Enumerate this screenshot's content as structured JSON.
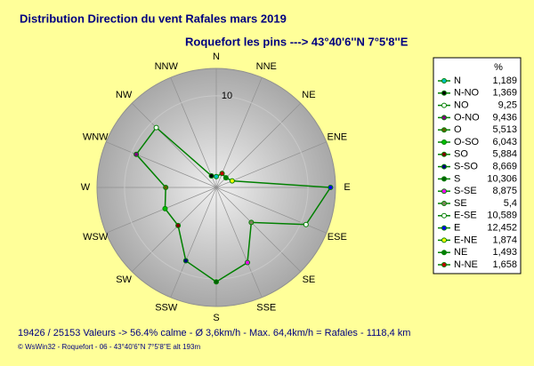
{
  "chart_data": {
    "type": "radar",
    "title": "Distribution Direction du vent Rafales  mars 2019",
    "subtitle": "Roquefort les pins    --->  43°40'6''N 7°5'8''E",
    "footer": "19426 / 25153 Valeurs  -> 56.4% calme   -   Ø 3,6km/h   -   Max. 64,4km/h = Rafales    -    1118,4 km",
    "credit": "© WsWin32  -  Roquefort - 06  -  43°40'6''N 7°5'8''E alt 193m",
    "directions": [
      "N",
      "NNE",
      "NE",
      "ENE",
      "E",
      "ESE",
      "SE",
      "SSE",
      "S",
      "SSW",
      "SW",
      "WSW",
      "W",
      "WNW",
      "NW",
      "NNW"
    ],
    "legend_unit": "%",
    "categories": [
      "N",
      "N-NO",
      "NO",
      "O-NO",
      "O",
      "O-SO",
      "SO",
      "S-SO",
      "S",
      "S-SE",
      "SE",
      "E-SE",
      "E",
      "E-NE",
      "NE",
      "N-NE"
    ],
    "values": [
      1.189,
      1.369,
      9.25,
      9.436,
      5.513,
      6.043,
      5.884,
      8.669,
      10.306,
      8.875,
      5.4,
      10.589,
      12.452,
      1.874,
      1.493,
      1.658
    ],
    "value_labels": [
      "1,189",
      "1,369",
      "9,25",
      "9,436",
      "5,513",
      "6,043",
      "5,884",
      "8,669",
      "10,306",
      "8,875",
      "5,4",
      "10,589",
      "12,452",
      "1,874",
      "1,493",
      "1,658"
    ],
    "marker_colors": [
      "#00c0c0",
      "#000000",
      "#ffffff",
      "#800080",
      "#606000",
      "#00c000",
      "#800000",
      "#000080",
      "#006000",
      "#ff00ff",
      "#808060",
      "#ffffff",
      "#0000ff",
      "#ffff00",
      "#008000",
      "#c00000"
    ],
    "line_color": "#008000",
    "rlim": [
      0,
      13
    ],
    "rticks": [
      10
    ]
  }
}
